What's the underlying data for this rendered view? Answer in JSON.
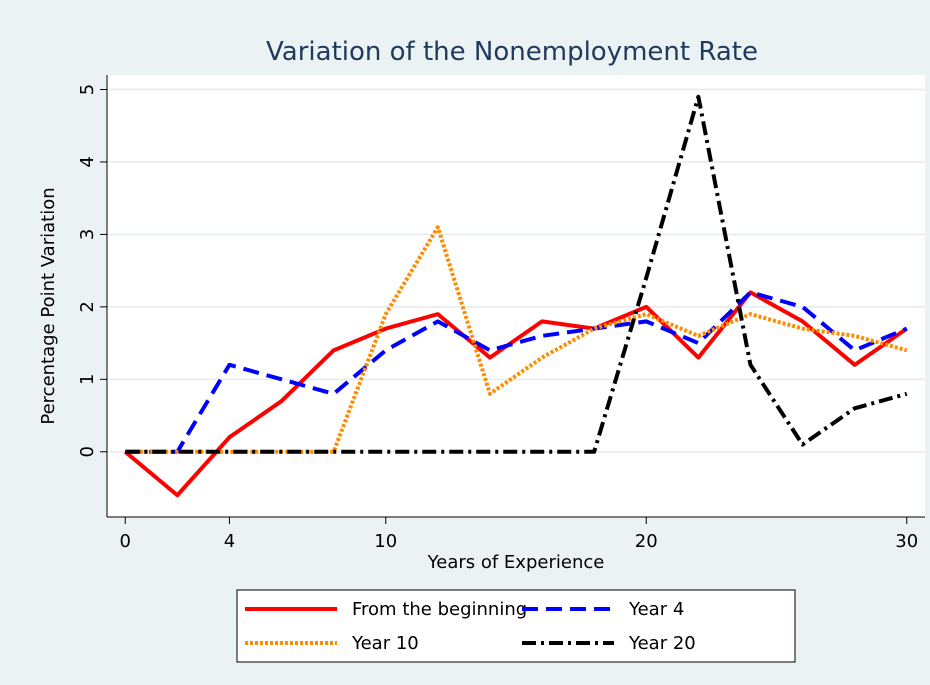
{
  "chart_data": {
    "type": "line",
    "title": "Variation of the Nonemployment Rate",
    "x_label": "Years of Experience",
    "y_label": "Percentage Point Variation",
    "x": [
      0,
      2,
      4,
      6,
      8,
      10,
      12,
      14,
      16,
      18,
      20,
      22,
      24,
      26,
      28,
      30
    ],
    "series": [
      {
        "name": "From the beginning",
        "color": "#ff0000",
        "values": [
          0,
          -0.6,
          0.2,
          0.7,
          1.4,
          1.7,
          1.9,
          1.3,
          1.8,
          1.7,
          2.0,
          1.3,
          2.2,
          1.8,
          1.2,
          1.7
        ]
      },
      {
        "name": "Year 4",
        "color": "#0000ff",
        "values": [
          0,
          0,
          1.2,
          1.0,
          0.8,
          1.4,
          1.8,
          1.4,
          1.6,
          1.7,
          1.8,
          1.5,
          2.2,
          2.0,
          1.4,
          1.7
        ]
      },
      {
        "name": "Year 10",
        "color": "#ff8c00",
        "values": [
          0,
          0,
          0,
          0,
          0,
          1.9,
          3.1,
          0.8,
          1.3,
          1.7,
          1.9,
          1.6,
          1.9,
          1.7,
          1.6,
          1.4
        ]
      },
      {
        "name": "Year 20",
        "color": "#000000",
        "values": [
          0,
          0,
          0,
          0,
          0,
          0,
          0,
          0,
          0,
          0,
          2.4,
          4.9,
          1.2,
          0.1,
          0.6,
          0.8
        ]
      }
    ],
    "xlim": [
      -0.7,
      30.7
    ],
    "ylim": [
      -0.9,
      5.2
    ],
    "xticks": [
      0,
      4,
      10,
      20,
      30
    ],
    "yticks": [
      0,
      1,
      2,
      3,
      4,
      5
    ],
    "grid": true
  }
}
